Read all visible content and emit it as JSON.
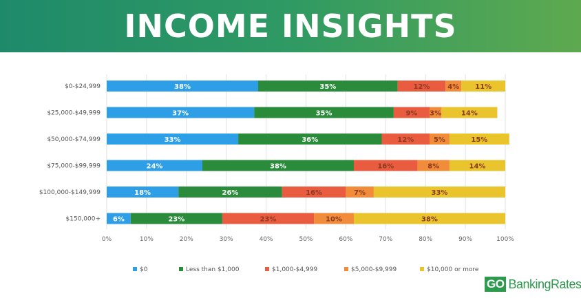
{
  "header": {
    "title": "INCOME INSIGHTS"
  },
  "logo": {
    "prefix": "GO",
    "rest": "BankingRates"
  },
  "chart_data": {
    "type": "bar",
    "orientation": "horizontal",
    "stacked": "percent",
    "title": "INCOME INSIGHTS",
    "categories": [
      "$0-$24,999",
      "$25,000-$49,999",
      "$50,000-$74,999",
      "$75,000-$99,999",
      "$100,000-$149,999",
      "$150,000+"
    ],
    "series": [
      {
        "name": "$0",
        "color": "#2e9fe6",
        "values": [
          38,
          37,
          33,
          24,
          18,
          6
        ]
      },
      {
        "name": "Less than $1,000",
        "color": "#2a8b3a",
        "values": [
          35,
          35,
          36,
          38,
          26,
          23
        ]
      },
      {
        "name": "$1,000-$4,999",
        "color": "#ea5c3f",
        "values": [
          12,
          9,
          12,
          16,
          16,
          23
        ]
      },
      {
        "name": "$5,000-$9,999",
        "color": "#f08c3a",
        "values": [
          4,
          3,
          5,
          8,
          7,
          10
        ]
      },
      {
        "name": "$10,000 or more",
        "color": "#e9c42d",
        "values": [
          11,
          14,
          15,
          14,
          33,
          38
        ]
      }
    ],
    "data_labels": [
      [
        "38%",
        "35%",
        "12%",
        "4%",
        "11%"
      ],
      [
        "37%",
        "35%",
        "9%",
        "3%",
        "14%"
      ],
      [
        "33%",
        "36%",
        "12%",
        "5%",
        "15%"
      ],
      [
        "24%",
        "38%",
        "16%",
        "8%",
        "14%"
      ],
      [
        "18%",
        "26%",
        "16%",
        "7%",
        "33%"
      ],
      [
        "6%",
        "23%",
        "23%",
        "10%",
        "38%"
      ]
    ],
    "x_ticks": [
      "0%",
      "10%",
      "20%",
      "30%",
      "40%",
      "50%",
      "60%",
      "70%",
      "80%",
      "90%",
      "100%"
    ],
    "xlim": [
      0,
      100
    ],
    "grid": true,
    "legend_position": "bottom"
  }
}
